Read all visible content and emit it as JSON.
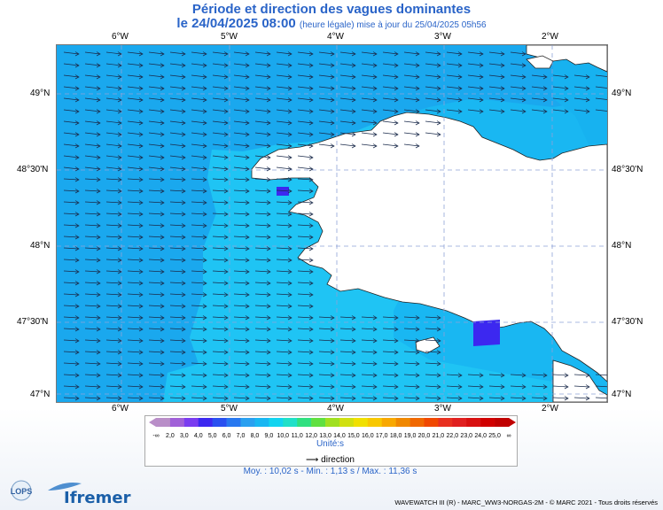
{
  "header": {
    "title": "Période et direction des vagues dominantes",
    "date": "le 24/04/2025 08:00",
    "subtitle": "(heure légale) mise à jour du 25/04/2025 05h56"
  },
  "axes": {
    "longitudes": [
      "6°W",
      "5°W",
      "4°W",
      "3°W",
      "2°W"
    ],
    "latitudes": [
      "49°N",
      "48°30'N",
      "48°N",
      "47°30'N",
      "47°N"
    ]
  },
  "legend": {
    "ticks": [
      "-∞",
      "2,0",
      "3,0",
      "4,0",
      "5,0",
      "6,0",
      "7,0",
      "8,0",
      "9,0",
      "10,0",
      "11,0",
      "12,0",
      "13,0",
      "14,0",
      "15,0",
      "16,0",
      "17,0",
      "18,0",
      "19,0",
      "20,0",
      "21,0",
      "22,0",
      "23,0",
      "24,0",
      "25,0",
      "∞"
    ],
    "colors": [
      "#b98ec8",
      "#a060d8",
      "#7a3cf0",
      "#3c28f0",
      "#2a50f0",
      "#2878f0",
      "#2aa0f0",
      "#19b7f2",
      "#12d4f0",
      "#20e0c8",
      "#30e080",
      "#60e040",
      "#a0e020",
      "#d0e010",
      "#f0e000",
      "#f8c800",
      "#f8a800",
      "#f08800",
      "#f06800",
      "#f04800",
      "#e83020",
      "#e02020",
      "#d81010",
      "#d00000",
      "#c00000"
    ],
    "unit": "Unité:s",
    "direction_label": "direction",
    "stats": "Moy. : 10,02 s   -   Min. : 1,13 s / Max. : 11,36 s"
  },
  "footer": {
    "credit": "WAVEWATCH III (R) - MARC_WW3-NORGAS-2M - © MARC 2021 - Tous droits réservés",
    "logo_left": "LOPS",
    "logo_right": "Ifremer"
  }
}
